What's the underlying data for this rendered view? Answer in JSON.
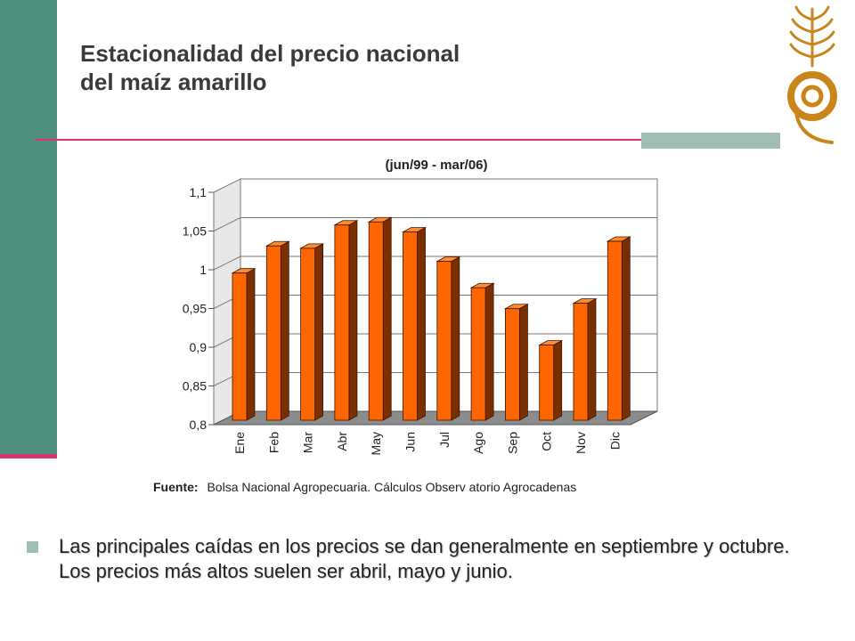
{
  "slide": {
    "title_line1": "Estacionalidad del precio nacional",
    "title_line2": "del maíz amarillo",
    "bullet": "Las principales caídas en los precios se dan generalmente en septiembre y octubre. Los precios más altos suelen ser abril, mayo y junio."
  },
  "colors": {
    "sidebar": "#4e8f7e",
    "accent_line": "#d6336c",
    "teal_block": "#9fbdb3",
    "bar_front": "#ff6600",
    "logo": "#c8861a"
  },
  "logo": {
    "icon": "wheat-gear-logo-icon"
  },
  "chart_data": {
    "type": "bar",
    "title": "(jun/99 - mar/06)",
    "categories": [
      "Ene",
      "Feb",
      "Mar",
      "Abr",
      "May",
      "Jun",
      "Jul",
      "Ago",
      "Sep",
      "Oct",
      "Nov",
      "Dic"
    ],
    "values": [
      0.99,
      1.025,
      1.022,
      1.052,
      1.056,
      1.043,
      1.005,
      0.971,
      0.944,
      0.897,
      0.951,
      1.031
    ],
    "yticks": [
      "1,1",
      "1,05",
      "1",
      "0,95",
      "0,9",
      "0,85",
      "0,8"
    ],
    "ylim": [
      0.8,
      1.1
    ],
    "grid": true,
    "legend": "none",
    "source_label": "Fuente:",
    "source_text": "Bolsa Nacional Agropecuaria.  Cálculos Observ atorio Agrocadenas"
  }
}
